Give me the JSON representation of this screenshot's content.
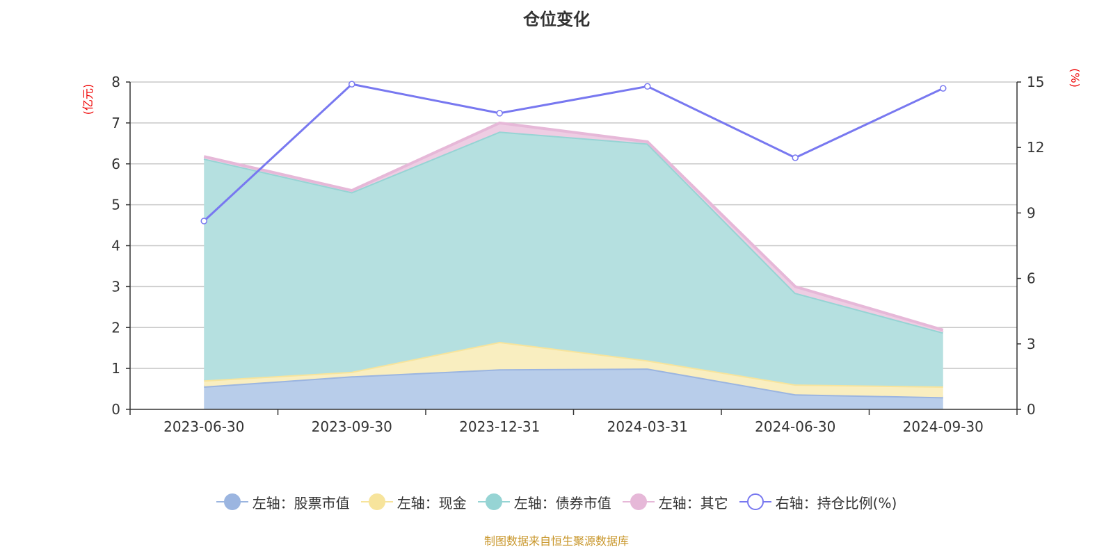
{
  "title": "仓位变化",
  "source": "制图数据来自恒生聚源数据库",
  "chart_data": {
    "type": "area",
    "stacked": true,
    "categories": [
      "2023-06-30",
      "2023-09-30",
      "2023-12-31",
      "2024-03-31",
      "2024-06-30",
      "2024-09-30"
    ],
    "left_axis": {
      "unit": "(亿元)",
      "range": [
        0,
        8
      ],
      "ticks": [
        "0",
        "1",
        "2",
        "3",
        "4",
        "5",
        "6",
        "7",
        "8"
      ]
    },
    "right_axis": {
      "unit": "(%)",
      "range": [
        0,
        15
      ],
      "ticks": [
        "0",
        "3",
        "6",
        "9",
        "12",
        "15"
      ]
    },
    "grid": true,
    "legend_position": "bottom",
    "series": [
      {
        "name": "左轴：股票市值",
        "axis": "left",
        "kind": "area",
        "color": "#9bb5e0",
        "fill": "#b8cdea",
        "values": [
          0.56,
          0.81,
          0.98,
          1.0,
          0.37,
          0.3
        ]
      },
      {
        "name": "左轴：现金",
        "axis": "left",
        "kind": "area",
        "color": "#f7e49c",
        "fill": "#f9eec0",
        "values": [
          0.15,
          0.11,
          0.67,
          0.2,
          0.24,
          0.26
        ]
      },
      {
        "name": "左轴：债券市值",
        "axis": "left",
        "kind": "area",
        "color": "#96d4d4",
        "fill": "#b5e0e0",
        "values": [
          5.42,
          4.39,
          5.14,
          5.3,
          2.24,
          1.32
        ]
      },
      {
        "name": "左轴：其它",
        "axis": "left",
        "kind": "area",
        "color": "#e6b8d8",
        "fill": "#eecde3",
        "values": [
          0.05,
          0.04,
          0.21,
          0.04,
          0.15,
          0.06
        ]
      },
      {
        "name": "右轴：持仓比例(%)",
        "axis": "right",
        "kind": "line",
        "color": "#7878f0",
        "values": [
          8.63,
          14.9,
          13.57,
          14.8,
          11.53,
          14.71
        ]
      }
    ]
  }
}
